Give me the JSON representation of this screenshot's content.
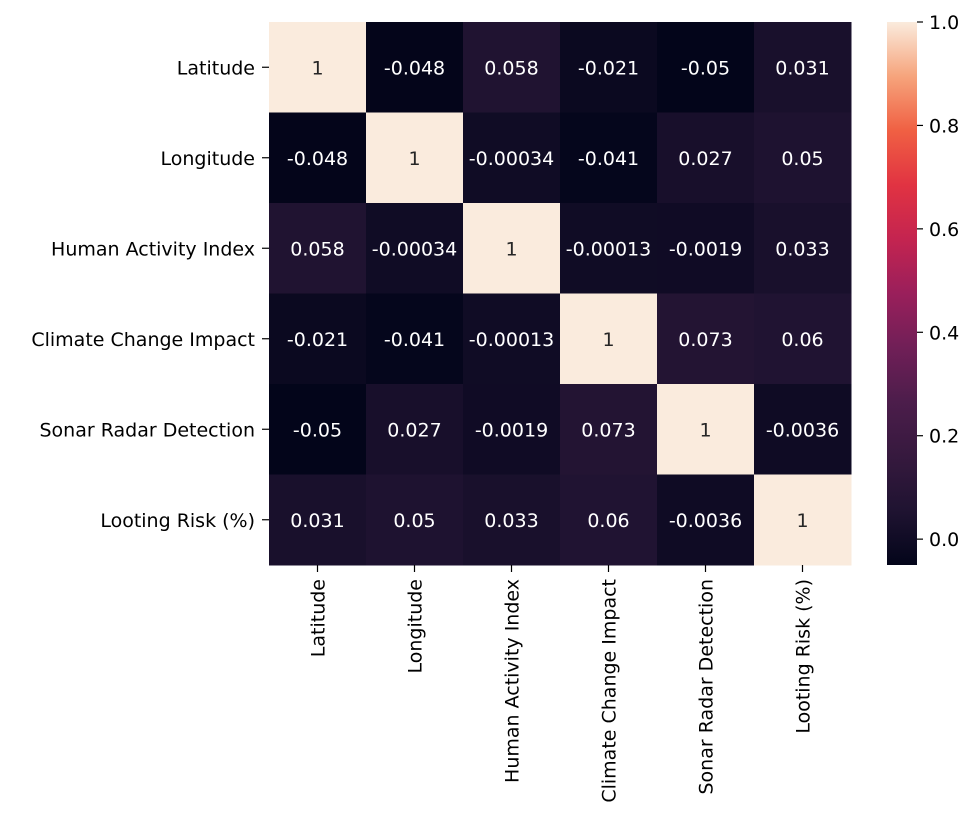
{
  "chart_data": {
    "type": "heatmap",
    "title": "",
    "xlabel": "",
    "ylabel": "",
    "rows": [
      "Latitude",
      "Longitude",
      "Human Activity Index",
      "Climate Change Impact",
      "Sonar Radar Detection",
      "Looting Risk (%)"
    ],
    "columns": [
      "Latitude",
      "Longitude",
      "Human Activity Index",
      "Climate Change Impact",
      "Sonar Radar Detection",
      "Looting Risk (%)"
    ],
    "values": [
      [
        1,
        -0.048,
        0.058,
        -0.021,
        -0.05,
        0.031
      ],
      [
        -0.048,
        1,
        -0.00034,
        -0.041,
        0.027,
        0.05
      ],
      [
        0.058,
        -0.00034,
        1,
        -0.00013,
        -0.0019,
        0.033
      ],
      [
        -0.021,
        -0.041,
        -0.00013,
        1,
        0.073,
        0.06
      ],
      [
        -0.05,
        0.027,
        -0.0019,
        0.073,
        1,
        -0.0036
      ],
      [
        0.031,
        0.05,
        0.033,
        0.06,
        -0.0036,
        1
      ]
    ],
    "cell_labels": [
      [
        "1",
        "-0.048",
        "0.058",
        "-0.021",
        "-0.05",
        "0.031"
      ],
      [
        "-0.048",
        "1",
        "-0.00034",
        "-0.041",
        "0.027",
        "0.05"
      ],
      [
        "0.058",
        "-0.00034",
        "1",
        "-0.00013",
        "-0.0019",
        "0.033"
      ],
      [
        "-0.021",
        "-0.041",
        "-0.00013",
        "1",
        "0.073",
        "0.06"
      ],
      [
        "-0.05",
        "0.027",
        "-0.0019",
        "0.073",
        "1",
        "-0.0036"
      ],
      [
        "0.031",
        "0.05",
        "0.033",
        "0.06",
        "-0.0036",
        "1"
      ]
    ],
    "colorbar": {
      "range": [
        -0.05,
        1.0
      ],
      "ticks": [
        0.0,
        0.2,
        0.4,
        0.6,
        0.8,
        1.0
      ],
      "tick_labels": [
        "0.0",
        "0.2",
        "0.4",
        "0.6",
        "0.8",
        "1.0"
      ],
      "colormap": "rocket",
      "colors": [
        "#03051a",
        "#1f1331",
        "#36193e",
        "#4c1d4b",
        "#701f57",
        "#9a1f5b",
        "#c42450",
        "#e13342",
        "#f06043",
        "#f6a47c",
        "#faebdd"
      ]
    }
  }
}
